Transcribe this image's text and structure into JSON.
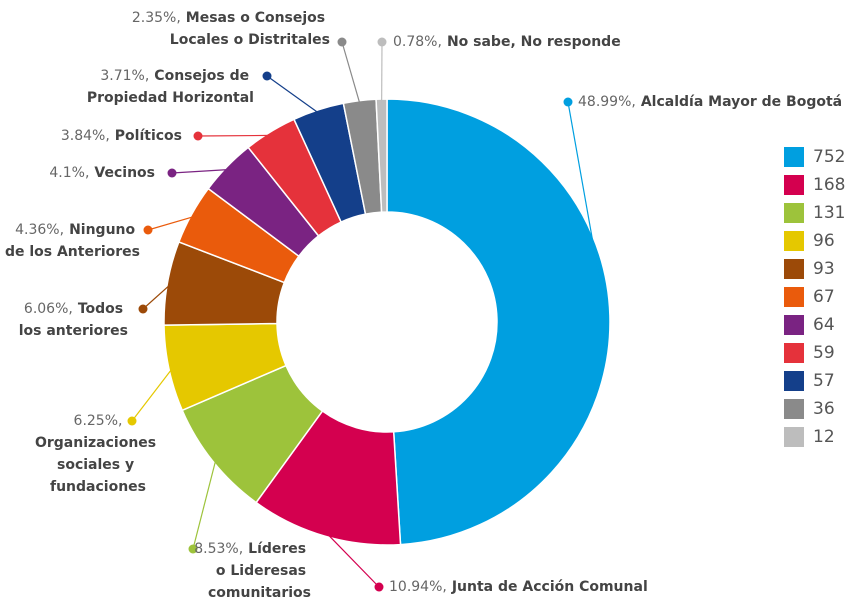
{
  "chart_data": {
    "type": "donut",
    "categories": [
      "Alcaldía Mayor de Bogotá",
      "Junta de Acción Comunal",
      "Líderes o Lideresas comunitarios",
      "Organizaciones sociales y fundaciones",
      "Todos los anteriores",
      "Ninguno de los Anteriores",
      "Vecinos",
      "Políticos",
      "Consejos de Propiedad Horizontal",
      "Mesas o Consejos Locales o Distritales",
      "No sabe, No responde"
    ],
    "values": [
      48.99,
      10.94,
      8.53,
      6.25,
      6.06,
      4.36,
      4.1,
      3.84,
      3.71,
      2.35,
      0.78
    ],
    "value_labels": [
      "48.99%,",
      "10.94%,",
      "8.53%,",
      "6.25%,",
      "6.06%,",
      "4.36%,",
      "4.1%,",
      "3.84%,",
      "3.71%,",
      "2.35%,",
      "0.78%,"
    ],
    "counts": [
      752,
      168,
      131,
      96,
      93,
      67,
      64,
      59,
      57,
      36,
      12
    ],
    "colors": [
      "#009fe0",
      "#d4004f",
      "#9dc33b",
      "#e5c800",
      "#9c4a08",
      "#ea5b0c",
      "#7a2382",
      "#e5323b",
      "#143f8a",
      "#8a8a8a",
      "#bdbdbd"
    ]
  }
}
